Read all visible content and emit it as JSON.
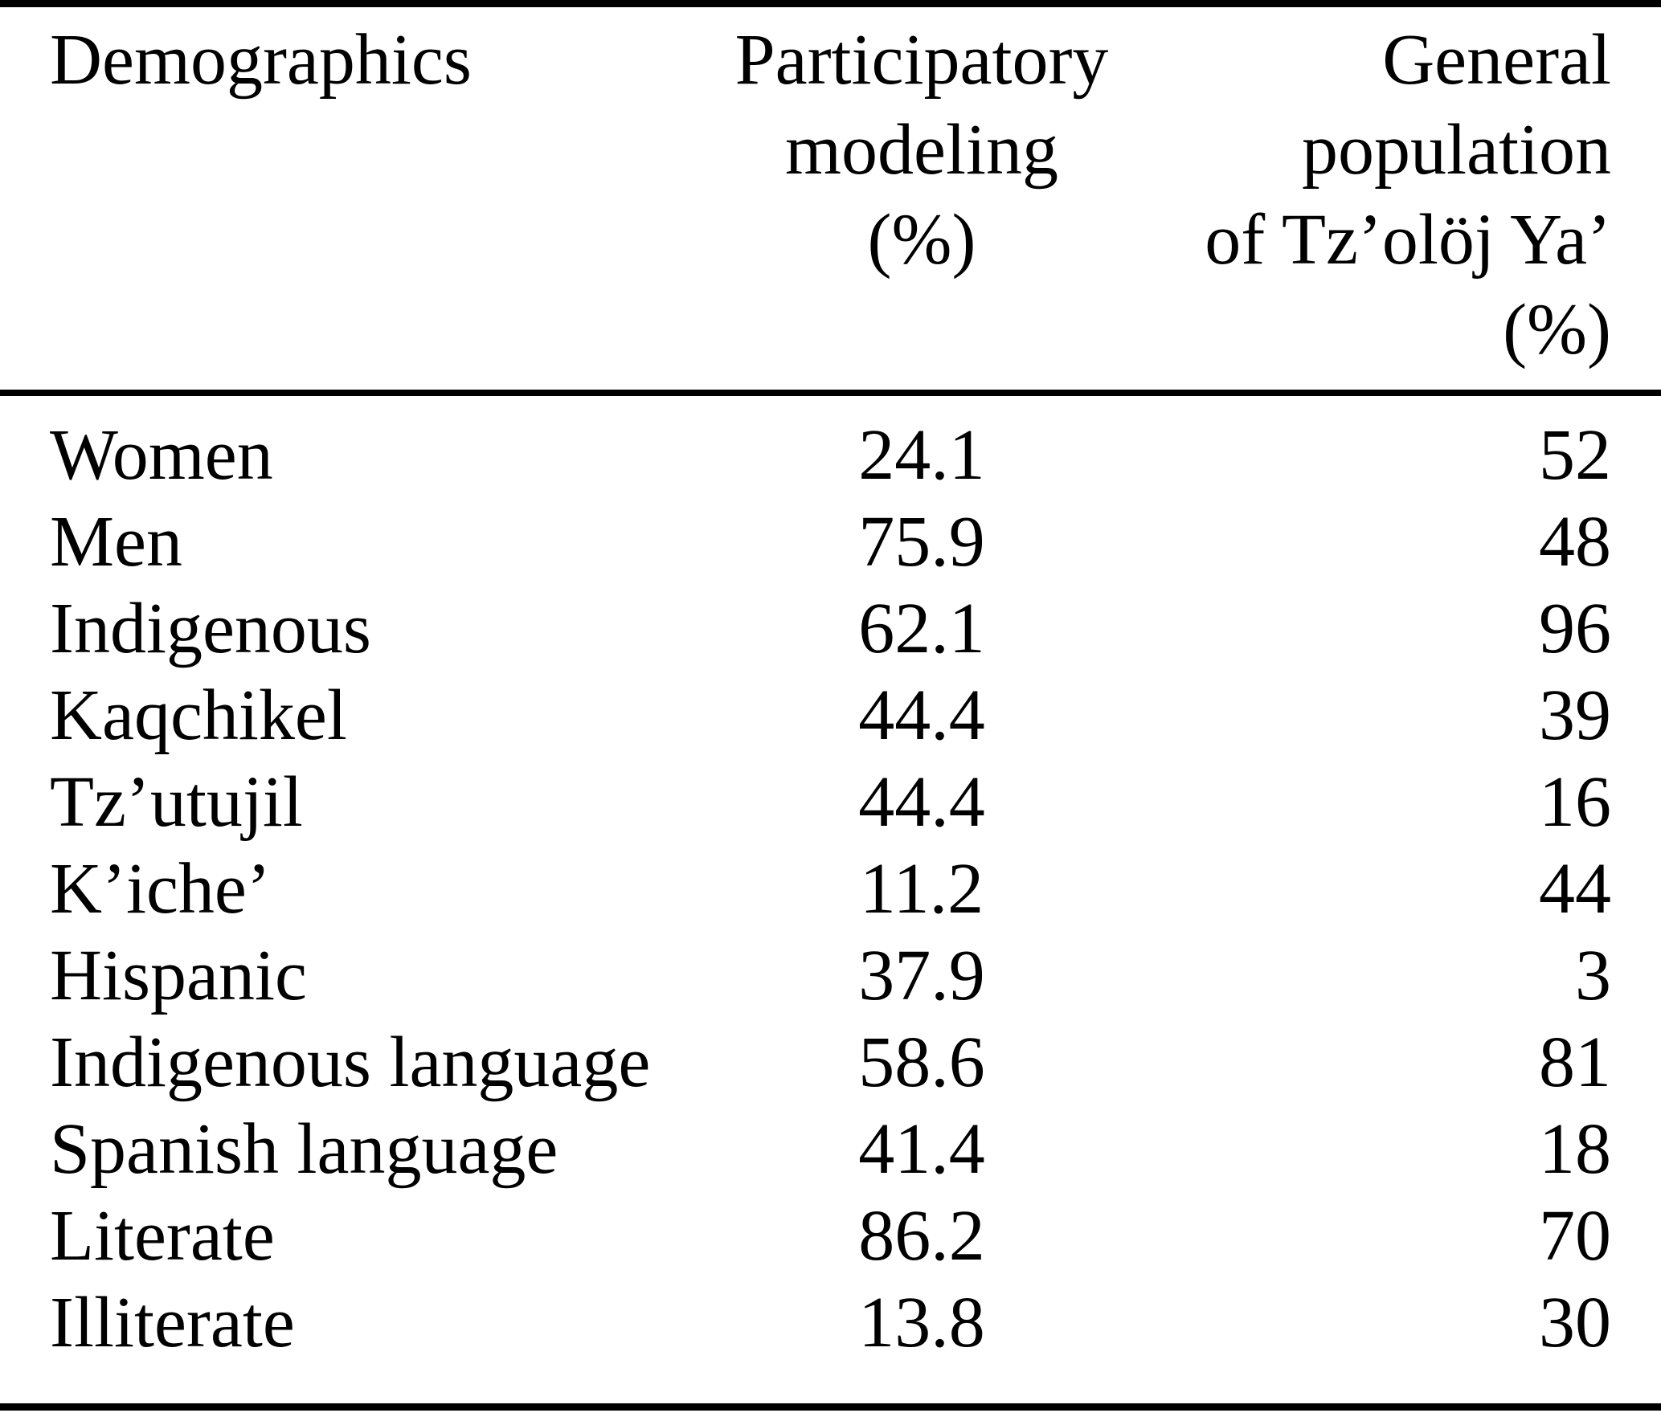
{
  "page": {
    "background": "#ffffff",
    "text_color": "#000000",
    "rule_color": "#000000"
  },
  "table": {
    "columns": [
      {
        "id": "demographic",
        "align": "left",
        "lines": [
          "Demographics"
        ]
      },
      {
        "id": "participatory",
        "align": "center",
        "lines": [
          "Participatory",
          "modeling",
          "(%)"
        ]
      },
      {
        "id": "general",
        "align": "right",
        "lines": [
          "General",
          "population",
          "of Tz’olöj Ya’",
          "(%)"
        ]
      }
    ],
    "rows": [
      {
        "demographic": "Women",
        "participatory": "24.1",
        "general": "52"
      },
      {
        "demographic": "Men",
        "participatory": "75.9",
        "general": "48"
      },
      {
        "demographic": "Indigenous",
        "participatory": "62.1",
        "general": "96"
      },
      {
        "demographic": "Kaqchikel",
        "participatory": "44.4",
        "general": "39"
      },
      {
        "demographic": "Tz’utujil",
        "participatory": "44.4",
        "general": "16"
      },
      {
        "demographic": "K’iche’",
        "participatory": "11.2",
        "general": "44"
      },
      {
        "demographic": "Hispanic",
        "participatory": "37.9",
        "general": "3"
      },
      {
        "demographic": "Indigenous language",
        "participatory": "58.6",
        "general": "81"
      },
      {
        "demographic": "Spanish language",
        "participatory": "41.4",
        "general": "18"
      },
      {
        "demographic": "Literate",
        "participatory": "86.2",
        "general": "70"
      },
      {
        "demographic": "Illiterate",
        "participatory": "13.8",
        "general": "30"
      }
    ]
  },
  "chart_data": {
    "type": "table",
    "columns": [
      "Demographics",
      "Participatory modeling (%)",
      "General population of Tz’olöj Ya’ (%)"
    ],
    "categories": [
      "Women",
      "Men",
      "Indigenous",
      "Kaqchikel",
      "Tz’utujil",
      "K’iche’",
      "Hispanic",
      "Indigenous language",
      "Spanish language",
      "Literate",
      "Illiterate"
    ],
    "series": [
      {
        "name": "Participatory modeling (%)",
        "values": [
          24.1,
          75.9,
          62.1,
          44.4,
          44.4,
          11.2,
          37.9,
          58.6,
          41.4,
          86.2,
          13.8
        ]
      },
      {
        "name": "General population of Tz’olöj Ya’ (%)",
        "values": [
          52,
          48,
          96,
          39,
          16,
          44,
          3,
          81,
          18,
          70,
          30
        ]
      }
    ]
  }
}
